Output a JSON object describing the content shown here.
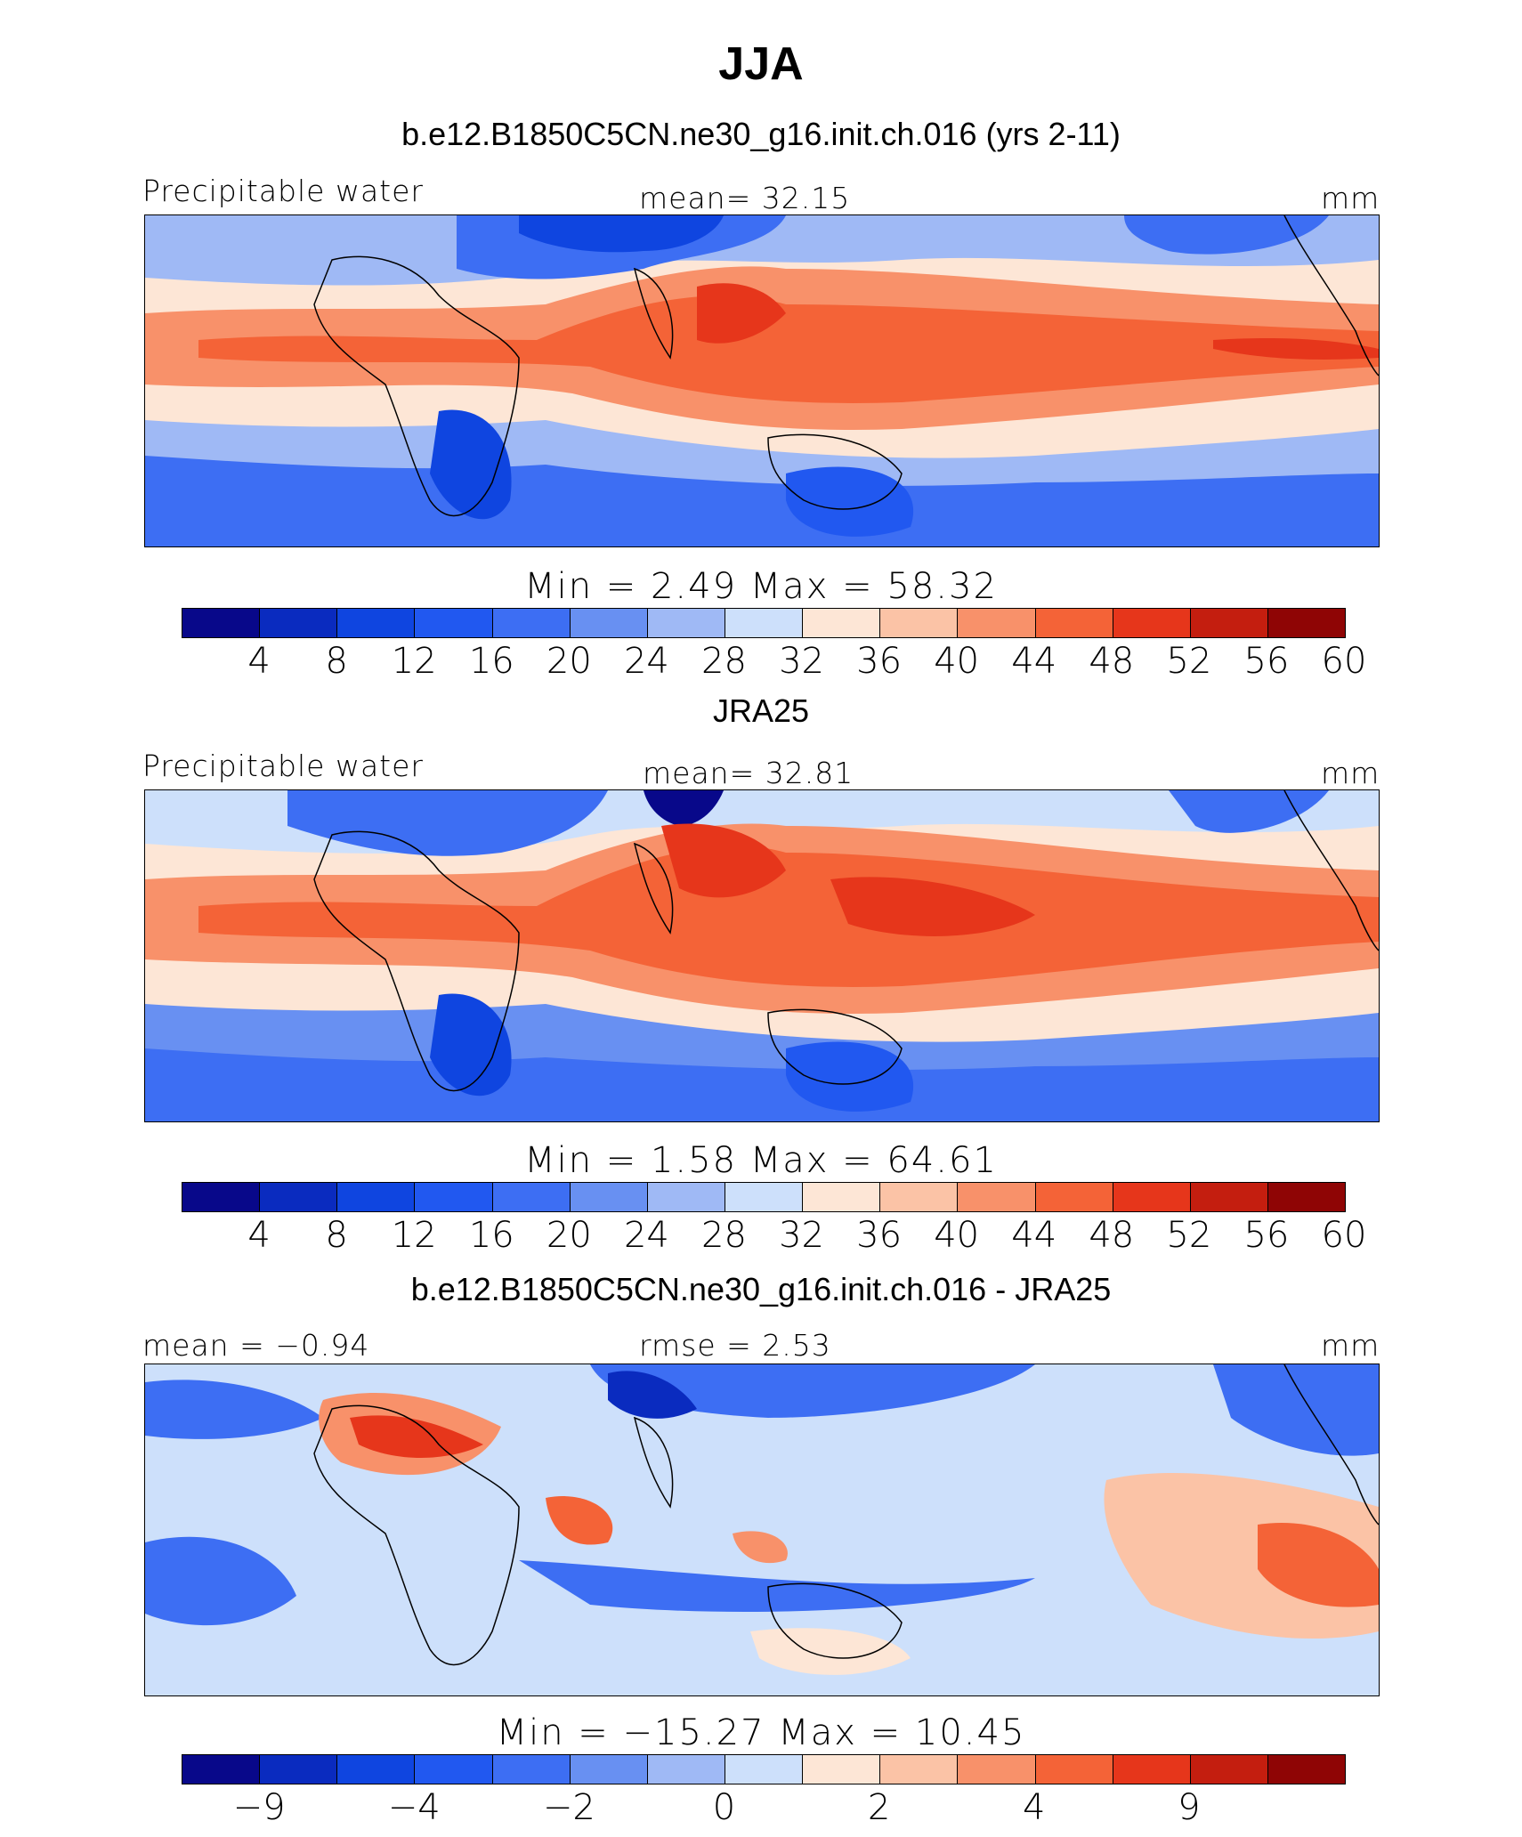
{
  "figure_title": "JJA",
  "colors": {
    "palette": [
      "#08088a",
      "#0a2bbf",
      "#0f45e0",
      "#2158f0",
      "#3d6ef3",
      "#6890f2",
      "#9fb9f5",
      "#cde0fb",
      "#fde6d6",
      "#fbc3a6",
      "#f8916a",
      "#f46337",
      "#e6361b",
      "#c41e0f",
      "#8f0505"
    ]
  },
  "panels": [
    {
      "title": "b.e12.B1850C5CN.ne30_g16.init.ch.016 (yrs 2-11)",
      "left_label": "Precipitable water",
      "center_label": "mean=   32.15",
      "right_label": "mm",
      "minmax": "Min  =     2.49  Max  =    58.32",
      "colorbar_ticks": [
        "4",
        "8",
        "12",
        "16",
        "20",
        "24",
        "28",
        "32",
        "36",
        "40",
        "44",
        "48",
        "52",
        "56",
        "60"
      ]
    },
    {
      "title": "JRA25",
      "left_label": "Precipitable water",
      "center_label": "mean=   32.81",
      "right_label": "mm",
      "minmax": "Min  =     1.58  Max  =    64.61",
      "colorbar_ticks": [
        "4",
        "8",
        "12",
        "16",
        "20",
        "24",
        "28",
        "32",
        "36",
        "40",
        "44",
        "48",
        "52",
        "56",
        "60"
      ]
    },
    {
      "title": "b.e12.B1850C5CN.ne30_g16.init.ch.016 - JRA25",
      "left_label": "mean  =   −0.94",
      "center_label": "rmse  =     2.53",
      "right_label": "mm",
      "minmax": "Min  =  −15.27  Max  =    10.45",
      "colorbar_ticks": [
        "−9",
        "−4",
        "−2",
        "0",
        "2",
        "4",
        "9"
      ]
    }
  ]
}
